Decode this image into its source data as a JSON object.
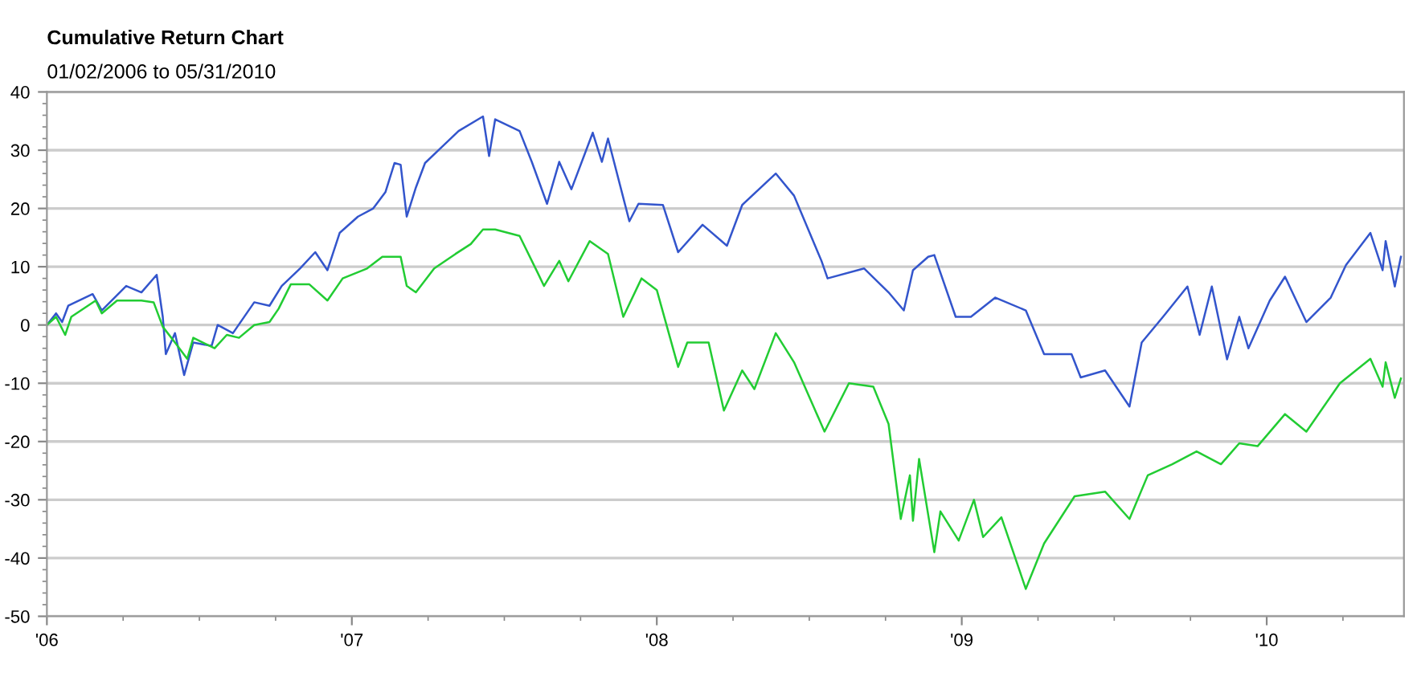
{
  "chart_data": {
    "type": "line",
    "title": "Cumulative Return Chart",
    "subtitle": "01/02/2006 to 05/31/2010",
    "xlim": [
      2006.0,
      2010.45
    ],
    "xticks": [
      {
        "value": 2006,
        "label": "'06"
      },
      {
        "value": 2007,
        "label": "'07"
      },
      {
        "value": 2008,
        "label": "'08"
      },
      {
        "value": 2009,
        "label": "'09"
      },
      {
        "value": 2010,
        "label": "'10"
      }
    ],
    "ylim": [
      -50,
      40
    ],
    "yticks": [
      -50,
      -40,
      -30,
      -20,
      -10,
      0,
      10,
      20,
      30,
      40
    ],
    "grid": "y",
    "legend": false,
    "series": [
      {
        "color": "#3355cc",
        "x": [
          2006.0,
          2006.03,
          2006.05,
          2006.07,
          2006.15,
          2006.18,
          2006.26,
          2006.31,
          2006.36,
          2006.38,
          2006.39,
          2006.42,
          2006.45,
          2006.48,
          2006.54,
          2006.56,
          2006.61,
          2006.68,
          2006.73,
          2006.77,
          2006.83,
          2006.88,
          2006.92,
          2006.96,
          2007.02,
          2007.07,
          2007.11,
          2007.14,
          2007.16,
          2007.18,
          2007.21,
          2007.24,
          2007.29,
          2007.35,
          2007.43,
          2007.45,
          2007.47,
          2007.55,
          2007.59,
          2007.64,
          2007.68,
          2007.72,
          2007.79,
          2007.82,
          2007.84,
          2007.91,
          2007.94,
          2008.02,
          2008.07,
          2008.15,
          2008.23,
          2008.28,
          2008.39,
          2008.45,
          2008.54,
          2008.56,
          2008.68,
          2008.76,
          2008.81,
          2008.84,
          2008.89,
          2008.91,
          2008.98,
          2009.03,
          2009.11,
          2009.21,
          2009.27,
          2009.36,
          2009.39,
          2009.47,
          2009.55,
          2009.59,
          2009.66,
          2009.74,
          2009.78,
          2009.82,
          2009.87,
          2009.91,
          2009.94,
          2010.01,
          2010.06,
          2010.13,
          2010.21,
          2010.26,
          2010.34,
          2010.38,
          2010.39,
          2010.42,
          2010.44
        ],
        "values": [
          0,
          2,
          0.5,
          3.3,
          5.3,
          2.5,
          6.7,
          5.6,
          8.6,
          1.4,
          -5,
          -1.4,
          -8.6,
          -3,
          -3.6,
          0,
          -1.4,
          3.9,
          3.3,
          6.7,
          9.7,
          12.5,
          9.4,
          15.8,
          18.6,
          20,
          22.8,
          27.8,
          27.5,
          18.6,
          23.6,
          27.8,
          30.3,
          33.3,
          35.8,
          29,
          35.3,
          33.3,
          28,
          20.8,
          28,
          23.3,
          33,
          28,
          32,
          17.8,
          20.8,
          20.6,
          12.5,
          17.2,
          13.6,
          20.6,
          26,
          22.2,
          11,
          8,
          9.7,
          5.6,
          2.5,
          9.4,
          11.7,
          12,
          1.4,
          1.4,
          4.7,
          2.5,
          -5,
          -5,
          -9,
          -7.8,
          -14,
          -3,
          1.4,
          6.6,
          -1.7,
          6.6,
          -5.9,
          1.4,
          -4,
          4.2,
          8.3,
          0.5,
          4.7,
          10.3,
          15.8,
          9.4,
          14.4,
          6.6,
          11.7
        ]
      },
      {
        "color": "#22cc33",
        "x": [
          2006.0,
          2006.03,
          2006.06,
          2006.08,
          2006.16,
          2006.18,
          2006.23,
          2006.31,
          2006.35,
          2006.38,
          2006.42,
          2006.46,
          2006.48,
          2006.55,
          2006.59,
          2006.63,
          2006.68,
          2006.73,
          2006.76,
          2006.8,
          2006.86,
          2006.92,
          2006.97,
          2007.05,
          2007.1,
          2007.16,
          2007.18,
          2007.21,
          2007.27,
          2007.34,
          2007.39,
          2007.43,
          2007.47,
          2007.55,
          2007.61,
          2007.63,
          2007.68,
          2007.71,
          2007.78,
          2007.84,
          2007.89,
          2007.95,
          2008.0,
          2008.07,
          2008.1,
          2008.17,
          2008.22,
          2008.28,
          2008.32,
          2008.39,
          2008.45,
          2008.55,
          2008.63,
          2008.71,
          2008.76,
          2008.8,
          2008.83,
          2008.84,
          2008.86,
          2008.91,
          2008.93,
          2008.99,
          2009.04,
          2009.07,
          2009.13,
          2009.21,
          2009.27,
          2009.37,
          2009.47,
          2009.55,
          2009.61,
          2009.69,
          2009.77,
          2009.85,
          2009.91,
          2009.97,
          2010.06,
          2010.13,
          2010.24,
          2010.34,
          2010.38,
          2010.39,
          2010.42,
          2010.44
        ],
        "values": [
          0,
          1.4,
          -1.7,
          1.4,
          4.2,
          2,
          4.2,
          4.2,
          3.9,
          -0.3,
          -3,
          -5.8,
          -2.2,
          -4,
          -1.7,
          -2.2,
          0,
          0.5,
          2.8,
          7,
          7,
          4.2,
          8,
          9.7,
          11.7,
          11.7,
          6.7,
          5.6,
          9.7,
          12.2,
          13.9,
          16.4,
          16.4,
          15.3,
          8.9,
          6.7,
          11,
          7.5,
          14.4,
          12.2,
          1.4,
          8,
          6,
          -7.2,
          -3,
          -3,
          -14.7,
          -7.8,
          -11,
          -1.4,
          -6.4,
          -18.3,
          -10,
          -10.6,
          -17,
          -33.3,
          -25.8,
          -33.6,
          -23,
          -39,
          -32,
          -37,
          -30,
          -36.4,
          -33,
          -45.3,
          -37.5,
          -29.4,
          -28.6,
          -33.3,
          -25.8,
          -23.9,
          -21.7,
          -23.9,
          -20.3,
          -20.8,
          -15.3,
          -18.3,
          -10,
          -5.8,
          -10.6,
          -6.4,
          -12.5,
          -9.2
        ]
      }
    ]
  }
}
